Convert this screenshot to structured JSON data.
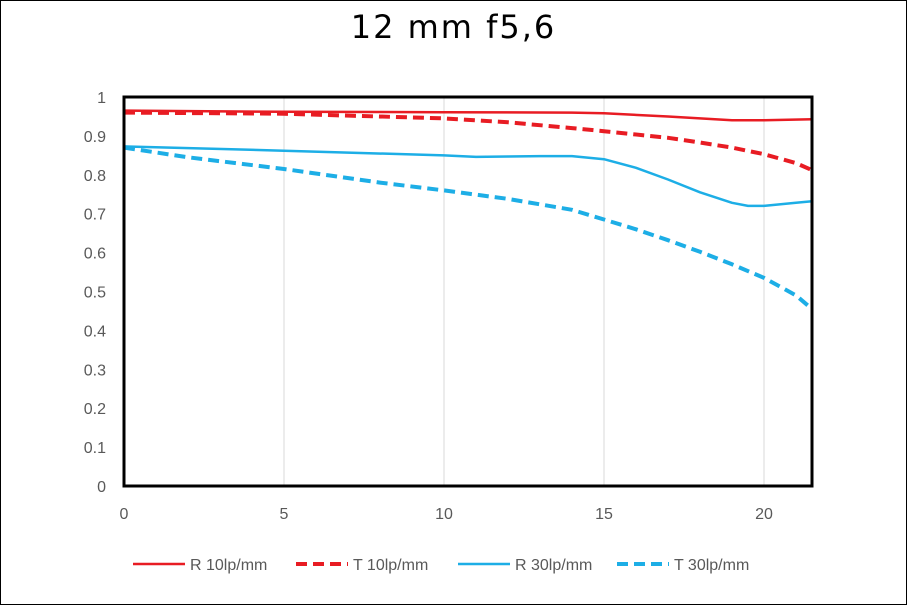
{
  "chart_data": {
    "type": "line",
    "title": "12 mm f5,6",
    "xlabel": "",
    "ylabel": "",
    "xlim": [
      0,
      21.5
    ],
    "ylim": [
      0,
      1
    ],
    "x_ticks": [
      "0",
      "5",
      "10",
      "15",
      "20"
    ],
    "y_ticks": [
      "0",
      "0.1",
      "0.2",
      "0.3",
      "0.4",
      "0.5",
      "0.6",
      "0.7",
      "0.8",
      "0.9",
      "1"
    ],
    "grid": "vertical",
    "legend_position": "bottom",
    "series": [
      {
        "name": "R 10lp/mm",
        "color": "#e81c23",
        "style": "solid",
        "x": [
          0,
          5,
          10,
          14,
          15,
          17,
          19,
          20,
          21.5
        ],
        "y": [
          0.965,
          0.962,
          0.961,
          0.96,
          0.958,
          0.95,
          0.94,
          0.94,
          0.943
        ]
      },
      {
        "name": "T 10lp/mm",
        "color": "#e81c23",
        "style": "dashed",
        "x": [
          0,
          5,
          10,
          12,
          14,
          15,
          17,
          18,
          19,
          20,
          21,
          21.5
        ],
        "y": [
          0.96,
          0.957,
          0.945,
          0.935,
          0.92,
          0.912,
          0.895,
          0.883,
          0.87,
          0.853,
          0.83,
          0.812
        ]
      },
      {
        "name": "R 30lp/mm",
        "color": "#1daee6",
        "style": "solid",
        "x": [
          0,
          5,
          10,
          11,
          12,
          13,
          14,
          15,
          16,
          17,
          18,
          19,
          19.5,
          20,
          21,
          21.5
        ],
        "y": [
          0.873,
          0.862,
          0.85,
          0.846,
          0.847,
          0.848,
          0.848,
          0.84,
          0.818,
          0.788,
          0.755,
          0.728,
          0.72,
          0.72,
          0.728,
          0.732
        ]
      },
      {
        "name": "T 30lp/mm",
        "color": "#1daee6",
        "style": "dashed",
        "x": [
          0,
          2,
          5,
          8,
          10,
          12,
          14,
          15,
          16,
          17,
          18,
          19,
          20,
          21,
          21.5
        ],
        "y": [
          0.87,
          0.845,
          0.815,
          0.78,
          0.76,
          0.738,
          0.71,
          0.685,
          0.66,
          0.632,
          0.602,
          0.57,
          0.535,
          0.49,
          0.455
        ]
      }
    ]
  }
}
